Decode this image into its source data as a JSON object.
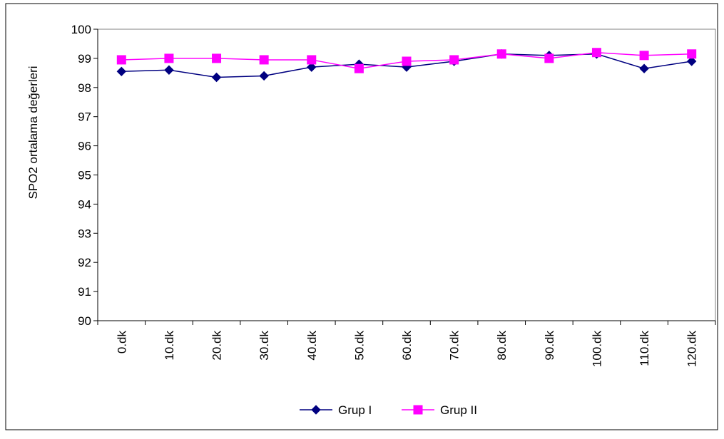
{
  "chart_data": {
    "type": "line",
    "title": "",
    "xlabel": "",
    "ylabel": "SPO2 ortalama değerleri",
    "categories": [
      "0.dk",
      "10.dk",
      "20.dk",
      "30.dk",
      "40.dk",
      "50.dk",
      "60.dk",
      "70.dk",
      "80.dk",
      "90.dk",
      "100.dk",
      "110.dk",
      "120.dk"
    ],
    "ylim": [
      90,
      100
    ],
    "yticks": [
      90,
      91,
      92,
      93,
      94,
      95,
      96,
      97,
      98,
      99,
      100
    ],
    "grid": false,
    "legend_position": "bottom",
    "series": [
      {
        "name": "Grup I",
        "color": "#000080",
        "marker": "diamond",
        "values": [
          98.55,
          98.6,
          98.35,
          98.4,
          98.7,
          98.8,
          98.7,
          98.9,
          99.15,
          99.1,
          99.15,
          98.65,
          98.9
        ]
      },
      {
        "name": "Grup II",
        "color": "#FF00FF",
        "marker": "square",
        "values": [
          98.95,
          99.0,
          99.0,
          98.95,
          98.95,
          98.65,
          98.9,
          98.95,
          99.15,
          99.0,
          99.2,
          99.1,
          99.15
        ]
      }
    ]
  }
}
